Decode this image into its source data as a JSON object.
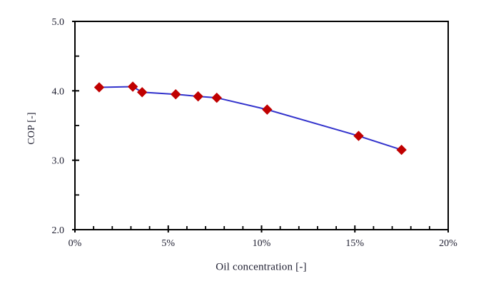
{
  "figure": {
    "background_color": "#ffffff",
    "text_color": "#1c1c2e",
    "axis_color": "#000000"
  },
  "chart_data": {
    "type": "line",
    "title": "",
    "xlabel": "Oil concentration [-]",
    "ylabel": "COP [-]",
    "x_unit": "percent",
    "x": [
      1.3,
      3.1,
      3.6,
      5.4,
      6.6,
      7.6,
      10.3,
      15.2,
      17.5
    ],
    "series": [
      {
        "name": "COP",
        "values": [
          4.05,
          4.06,
          3.98,
          3.95,
          3.92,
          3.9,
          3.73,
          3.35,
          3.15
        ],
        "line_color": "#3333cc",
        "marker": "diamond",
        "marker_color": "#c00000"
      }
    ],
    "xlim": [
      0,
      20
    ],
    "ylim": [
      2.0,
      5.0
    ],
    "x_major_ticks": [
      0,
      5,
      10,
      15,
      20
    ],
    "x_tick_labels": [
      "0%",
      "5%",
      "10%",
      "15%",
      "20%"
    ],
    "x_minor_step": 1,
    "y_major_ticks": [
      2.0,
      3.0,
      4.0,
      5.0
    ],
    "y_tick_labels": [
      "2.0",
      "3.0",
      "4.0",
      "5.0"
    ],
    "y_minor_step": 0.5,
    "grid": false,
    "legend_position": "none"
  }
}
